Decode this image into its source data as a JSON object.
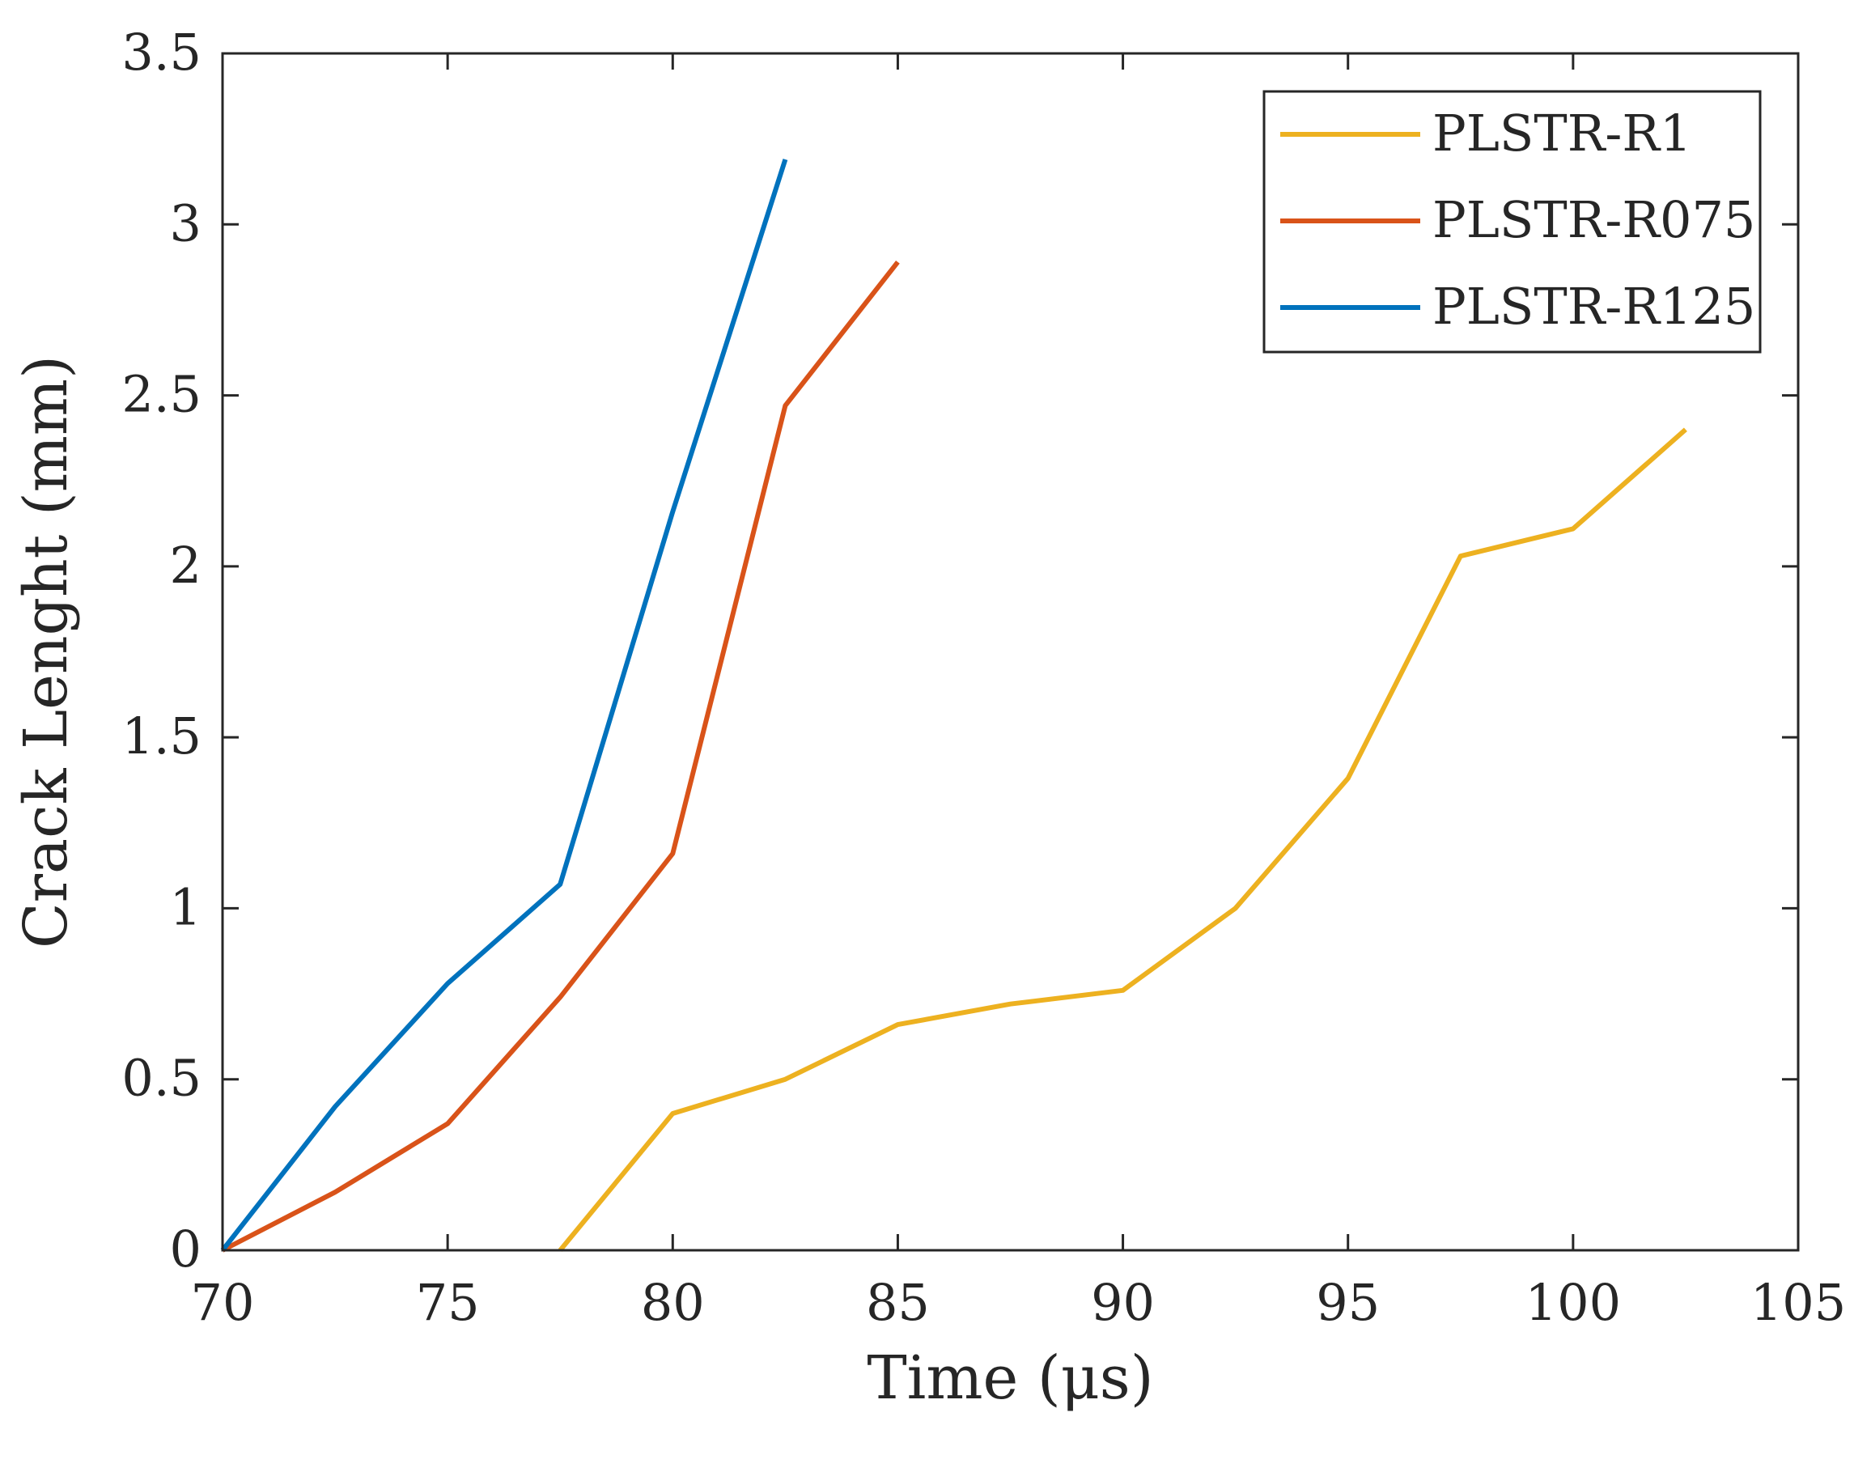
{
  "chart_data": {
    "type": "line",
    "title": "",
    "xlabel": "Time (μs)",
    "ylabel": "Crack Lenght (mm)",
    "xlim": [
      70,
      105
    ],
    "ylim": [
      0,
      3.5
    ],
    "xticks": [
      70,
      75,
      80,
      85,
      90,
      95,
      100,
      105
    ],
    "yticks": [
      0,
      0.5,
      1,
      1.5,
      2,
      2.5,
      3,
      3.5
    ],
    "xtick_labels": [
      "70",
      "75",
      "80",
      "85",
      "90",
      "95",
      "100",
      "105"
    ],
    "ytick_labels": [
      "0",
      "0.5",
      "1",
      "1.5",
      "2",
      "2.5",
      "3",
      "3.5"
    ],
    "grid": false,
    "legend_position": "top-right",
    "series": [
      {
        "name": "PLSTR-R1",
        "color": "#EDB120",
        "x": [
          77.5,
          80,
          82.5,
          85,
          87.5,
          90,
          92.5,
          95,
          97.5,
          100,
          102.5
        ],
        "y": [
          0,
          0.4,
          0.5,
          0.66,
          0.72,
          0.76,
          1.0,
          1.38,
          2.03,
          2.11,
          2.4
        ]
      },
      {
        "name": "PLSTR-R075",
        "color": "#D95319",
        "x": [
          70,
          72.5,
          75,
          77.5,
          80,
          82.5,
          85
        ],
        "y": [
          0,
          0.17,
          0.37,
          0.74,
          1.16,
          2.47,
          2.89
        ]
      },
      {
        "name": "PLSTR-R125",
        "color": "#0072BD",
        "x": [
          70,
          72.5,
          75,
          77.5,
          80,
          82.5
        ],
        "y": [
          0,
          0.42,
          0.78,
          1.07,
          2.16,
          3.19
        ]
      }
    ]
  }
}
